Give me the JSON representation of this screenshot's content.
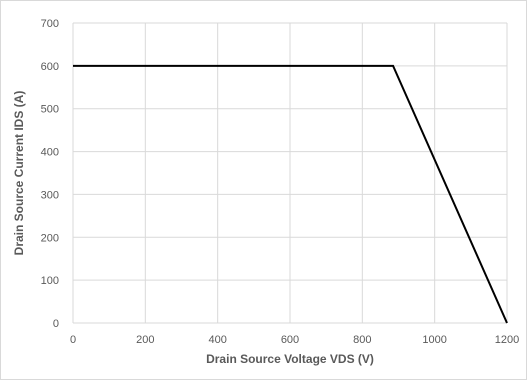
{
  "chart_data": {
    "type": "line",
    "title": "",
    "xlabel": "Drain Source Voltage VDS (V)",
    "ylabel": "Drain Source Current IDS (A)",
    "xlim": [
      0,
      1200
    ],
    "ylim": [
      0,
      700
    ],
    "x_ticks": [
      "0",
      "200",
      "400",
      "600",
      "800",
      "1000",
      "1200"
    ],
    "y_ticks": [
      "0",
      "100",
      "200",
      "300",
      "400",
      "500",
      "600",
      "700"
    ],
    "grid": true,
    "legend": "none",
    "series": [
      {
        "x": [
          0,
          885,
          1200
        ],
        "y": [
          600,
          600,
          0
        ],
        "color": "#000000"
      }
    ],
    "colors": {
      "grid": "#d9d9d9",
      "line": "#000000",
      "text": "#595959"
    }
  }
}
